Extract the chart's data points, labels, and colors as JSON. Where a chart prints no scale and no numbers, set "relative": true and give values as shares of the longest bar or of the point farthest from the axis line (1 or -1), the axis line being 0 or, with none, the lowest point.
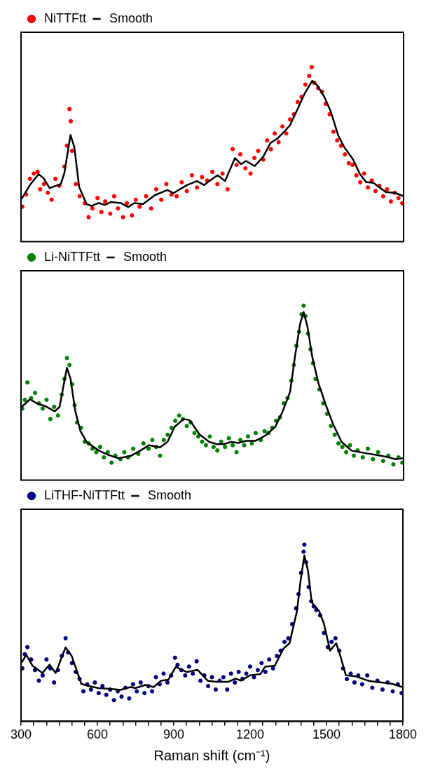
{
  "chart_data": [
    {
      "type": "scatter",
      "relative": true,
      "legend": "top left",
      "tick_labels": false,
      "xlim": [
        300,
        1800
      ],
      "series": [
        {
          "name": "NiTTFtt",
          "type": "scatter",
          "marker": "circle",
          "color": "#ff0000",
          "x": [
            305,
            320,
            335,
            350,
            365,
            375,
            390,
            405,
            420,
            435,
            450,
            470,
            480,
            490,
            495,
            500,
            515,
            530,
            550,
            565,
            580,
            600,
            615,
            630,
            650,
            665,
            680,
            700,
            715,
            735,
            750,
            765,
            790,
            810,
            830,
            850,
            870,
            890,
            910,
            930,
            950,
            970,
            990,
            1010,
            1030,
            1050,
            1070,
            1090,
            1110,
            1130,
            1145,
            1160,
            1180,
            1200,
            1215,
            1230,
            1250,
            1265,
            1280,
            1295,
            1310,
            1325,
            1340,
            1355,
            1370,
            1385,
            1400,
            1415,
            1430,
            1440,
            1450,
            1465,
            1480,
            1495,
            1510,
            1525,
            1540,
            1555,
            1570,
            1585,
            1600,
            1615,
            1630,
            1645,
            1660,
            1675,
            1690,
            1705,
            1720,
            1735,
            1750,
            1765,
            1780,
            1795
          ],
          "values": [
            0.2,
            0.27,
            0.36,
            0.39,
            0.4,
            0.3,
            0.33,
            0.28,
            0.24,
            0.36,
            0.32,
            0.43,
            0.55,
            0.76,
            0.69,
            0.52,
            0.33,
            0.26,
            0.22,
            0.14,
            0.19,
            0.25,
            0.17,
            0.23,
            0.16,
            0.26,
            0.19,
            0.14,
            0.22,
            0.15,
            0.24,
            0.2,
            0.26,
            0.19,
            0.3,
            0.24,
            0.33,
            0.27,
            0.26,
            0.34,
            0.29,
            0.38,
            0.31,
            0.37,
            0.35,
            0.4,
            0.33,
            0.39,
            0.3,
            0.53,
            0.44,
            0.5,
            0.42,
            0.39,
            0.48,
            0.52,
            0.47,
            0.58,
            0.53,
            0.62,
            0.57,
            0.66,
            0.62,
            0.7,
            0.73,
            0.8,
            0.83,
            0.9,
            0.95,
            1.0,
            0.91,
            0.88,
            0.86,
            0.79,
            0.73,
            0.63,
            0.58,
            0.55,
            0.5,
            0.45,
            0.44,
            0.38,
            0.34,
            0.39,
            0.31,
            0.35,
            0.29,
            0.32,
            0.26,
            0.3,
            0.23,
            0.28,
            0.25,
            0.22
          ]
        },
        {
          "name": "Smooth",
          "type": "line",
          "color": "#000000",
          "x": [
            302,
            335,
            369,
            388,
            412,
            456,
            470,
            494,
            509,
            528,
            557,
            576,
            605,
            629,
            653,
            691,
            720,
            744,
            778,
            826,
            874,
            898,
            951,
            990,
            1018,
            1038,
            1071,
            1100,
            1139,
            1163,
            1182,
            1216,
            1249,
            1278,
            1307,
            1331,
            1355,
            1384,
            1413,
            1442,
            1461,
            1490,
            1514,
            1543,
            1567,
            1601,
            1629,
            1653,
            1682,
            1730,
            1769,
            1798
          ],
          "values": [
            0.244,
            0.324,
            0.387,
            0.364,
            0.307,
            0.33,
            0.393,
            0.611,
            0.542,
            0.313,
            0.215,
            0.204,
            0.221,
            0.21,
            0.227,
            0.221,
            0.198,
            0.221,
            0.215,
            0.267,
            0.296,
            0.278,
            0.324,
            0.347,
            0.324,
            0.347,
            0.381,
            0.347,
            0.479,
            0.444,
            0.462,
            0.433,
            0.485,
            0.565,
            0.593,
            0.628,
            0.668,
            0.759,
            0.851,
            0.922,
            0.897,
            0.828,
            0.748,
            0.611,
            0.542,
            0.473,
            0.387,
            0.341,
            0.336,
            0.284,
            0.278,
            0.261
          ]
        }
      ]
    },
    {
      "type": "scatter",
      "relative": true,
      "legend": "top left",
      "tick_labels": false,
      "xlim": [
        300,
        1800
      ],
      "series": [
        {
          "name": "Li-NiTTFtt",
          "type": "scatter",
          "marker": "circle",
          "color": "#008000",
          "x": [
            305,
            315,
            325,
            340,
            355,
            370,
            385,
            400,
            415,
            430,
            445,
            460,
            470,
            480,
            490,
            500,
            510,
            520,
            535,
            550,
            565,
            580,
            595,
            610,
            625,
            640,
            655,
            670,
            690,
            705,
            720,
            740,
            760,
            780,
            800,
            815,
            830,
            845,
            860,
            875,
            890,
            905,
            920,
            935,
            950,
            965,
            980,
            995,
            1010,
            1025,
            1040,
            1055,
            1070,
            1085,
            1100,
            1115,
            1130,
            1145,
            1160,
            1175,
            1190,
            1205,
            1220,
            1240,
            1255,
            1270,
            1285,
            1300,
            1315,
            1330,
            1345,
            1360,
            1370,
            1380,
            1390,
            1400,
            1408,
            1415,
            1425,
            1435,
            1445,
            1455,
            1470,
            1485,
            1500,
            1515,
            1530,
            1545,
            1560,
            1575,
            1590,
            1605,
            1620,
            1640,
            1660,
            1680,
            1700,
            1720,
            1740,
            1760,
            1780,
            1795
          ],
          "values": [
            0.41,
            0.46,
            0.56,
            0.47,
            0.5,
            0.44,
            0.41,
            0.46,
            0.35,
            0.42,
            0.37,
            0.49,
            0.58,
            0.7,
            0.66,
            0.55,
            0.43,
            0.33,
            0.3,
            0.22,
            0.21,
            0.18,
            0.16,
            0.19,
            0.13,
            0.16,
            0.1,
            0.14,
            0.12,
            0.16,
            0.13,
            0.18,
            0.15,
            0.21,
            0.18,
            0.23,
            0.19,
            0.14,
            0.23,
            0.26,
            0.3,
            0.34,
            0.37,
            0.35,
            0.31,
            0.33,
            0.27,
            0.25,
            0.22,
            0.2,
            0.25,
            0.19,
            0.17,
            0.22,
            0.19,
            0.24,
            0.2,
            0.16,
            0.23,
            0.2,
            0.25,
            0.21,
            0.27,
            0.23,
            0.28,
            0.27,
            0.3,
            0.34,
            0.36,
            0.44,
            0.47,
            0.57,
            0.66,
            0.77,
            0.85,
            0.95,
            1.0,
            0.94,
            0.84,
            0.75,
            0.67,
            0.58,
            0.52,
            0.44,
            0.38,
            0.31,
            0.26,
            0.21,
            0.19,
            0.16,
            0.2,
            0.14,
            0.17,
            0.13,
            0.18,
            0.12,
            0.16,
            0.11,
            0.14,
            0.09,
            0.13,
            0.1
          ]
        },
        {
          "name": "Smooth",
          "type": "line",
          "color": "#000000",
          "x": [
            302,
            335,
            364,
            393,
            432,
            451,
            480,
            494,
            513,
            533,
            557,
            605,
            643,
            682,
            730,
            768,
            802,
            845,
            874,
            903,
            937,
            961,
            999,
            1038,
            1067,
            1095,
            1124,
            1153,
            1182,
            1220,
            1259,
            1297,
            1326,
            1355,
            1374,
            1394,
            1408,
            1423,
            1442,
            1466,
            1495,
            1524,
            1557,
            1596,
            1644,
            1692,
            1740,
            1769,
            1798
          ],
          "values": [
            0.419,
            0.463,
            0.438,
            0.425,
            0.394,
            0.419,
            0.644,
            0.581,
            0.394,
            0.281,
            0.219,
            0.169,
            0.144,
            0.125,
            0.138,
            0.169,
            0.2,
            0.188,
            0.219,
            0.306,
            0.35,
            0.344,
            0.263,
            0.219,
            0.206,
            0.206,
            0.219,
            0.213,
            0.225,
            0.225,
            0.256,
            0.306,
            0.394,
            0.506,
            0.706,
            0.894,
            0.963,
            0.881,
            0.706,
            0.556,
            0.431,
            0.319,
            0.219,
            0.169,
            0.156,
            0.144,
            0.131,
            0.119,
            0.125
          ]
        }
      ]
    },
    {
      "type": "scatter",
      "relative": true,
      "legend": "top left",
      "tick_labels": "x",
      "xlim": [
        300,
        1800
      ],
      "xlabel": "Raman shift (cm⁻¹)",
      "xticks": [
        300,
        {
          "value": 350,
          "label": null
        },
        {
          "value": 400,
          "label": null
        },
        {
          "value": 450,
          "label": null
        },
        {
          "value": 500,
          "label": null
        },
        {
          "value": 550,
          "label": null
        },
        600,
        {
          "value": 650,
          "label": null
        },
        {
          "value": 700,
          "label": null
        },
        {
          "value": 750,
          "label": null
        },
        {
          "value": 800,
          "label": null
        },
        {
          "value": 850,
          "label": null
        },
        900,
        {
          "value": 950,
          "label": null
        },
        {
          "value": 1000,
          "label": null
        },
        {
          "value": 1050,
          "label": null
        },
        {
          "value": 1100,
          "label": null
        },
        {
          "value": 1150,
          "label": null
        },
        1200,
        {
          "value": 1250,
          "label": null
        },
        {
          "value": 1300,
          "label": null
        },
        {
          "value": 1350,
          "label": null
        },
        {
          "value": 1400,
          "label": null
        },
        {
          "value": 1450,
          "label": null
        },
        1500,
        {
          "value": 1550,
          "label": null
        },
        {
          "value": 1600,
          "label": null
        },
        {
          "value": 1650,
          "label": null
        },
        {
          "value": 1700,
          "label": null
        },
        {
          "value": 1750,
          "label": null
        },
        1800
      ],
      "series": [
        {
          "name": "LiTHF-NiTTFtt",
          "type": "scatter",
          "marker": "circle",
          "color": "#000080",
          "x": [
            305,
            315,
            325,
            340,
            355,
            370,
            385,
            400,
            415,
            430,
            445,
            460,
            475,
            485,
            500,
            515,
            530,
            545,
            560,
            575,
            590,
            605,
            620,
            635,
            650,
            665,
            680,
            695,
            710,
            725,
            740,
            755,
            770,
            785,
            800,
            815,
            830,
            845,
            860,
            875,
            890,
            905,
            915,
            930,
            945,
            960,
            975,
            990,
            1005,
            1020,
            1035,
            1050,
            1065,
            1080,
            1095,
            1110,
            1125,
            1140,
            1155,
            1170,
            1185,
            1200,
            1215,
            1230,
            1245,
            1260,
            1275,
            1290,
            1305,
            1320,
            1335,
            1350,
            1365,
            1380,
            1390,
            1400,
            1410,
            1413,
            1420,
            1430,
            1440,
            1450,
            1460,
            1475,
            1490,
            1505,
            1520,
            1535,
            1550,
            1565,
            1580,
            1595,
            1610,
            1625,
            1640,
            1660,
            1680,
            1700,
            1720,
            1740,
            1760,
            1780,
            1795
          ],
          "values": [
            0.3,
            0.38,
            0.42,
            0.35,
            0.29,
            0.23,
            0.26,
            0.35,
            0.3,
            0.22,
            0.29,
            0.37,
            0.47,
            0.39,
            0.33,
            0.28,
            0.24,
            0.17,
            0.21,
            0.18,
            0.22,
            0.16,
            0.2,
            0.15,
            0.18,
            0.12,
            0.17,
            0.14,
            0.19,
            0.13,
            0.21,
            0.17,
            0.22,
            0.16,
            0.2,
            0.17,
            0.25,
            0.21,
            0.27,
            0.22,
            0.26,
            0.36,
            0.32,
            0.29,
            0.26,
            0.31,
            0.27,
            0.34,
            0.23,
            0.26,
            0.2,
            0.25,
            0.18,
            0.23,
            0.25,
            0.18,
            0.27,
            0.22,
            0.28,
            0.24,
            0.27,
            0.31,
            0.25,
            0.29,
            0.33,
            0.28,
            0.35,
            0.3,
            0.37,
            0.4,
            0.45,
            0.47,
            0.55,
            0.64,
            0.72,
            0.84,
            0.96,
            1.0,
            0.9,
            0.76,
            0.68,
            0.65,
            0.63,
            0.6,
            0.5,
            0.42,
            0.45,
            0.47,
            0.4,
            0.3,
            0.24,
            0.27,
            0.22,
            0.26,
            0.21,
            0.26,
            0.19,
            0.23,
            0.18,
            0.22,
            0.17,
            0.21,
            0.16
          ]
        },
        {
          "name": "Smooth",
          "type": "line",
          "color": "#000000",
          "x": [
            302,
            321,
            345,
            384,
            412,
            436,
            475,
            499,
            537,
            566,
            605,
            663,
            691,
            730,
            749,
            788,
            821,
            850,
            879,
            908,
            951,
            994,
            1033,
            1067,
            1115,
            1143,
            1163,
            1201,
            1240,
            1259,
            1297,
            1331,
            1355,
            1384,
            1398,
            1413,
            1427,
            1442,
            1471,
            1490,
            1514,
            1538,
            1552,
            1576,
            1615,
            1663,
            1692,
            1730,
            1759,
            1798
          ],
          "values": [
            0.333,
            0.376,
            0.315,
            0.273,
            0.321,
            0.273,
            0.418,
            0.37,
            0.212,
            0.2,
            0.188,
            0.182,
            0.178,
            0.194,
            0.188,
            0.206,
            0.194,
            0.23,
            0.236,
            0.309,
            0.279,
            0.291,
            0.23,
            0.224,
            0.224,
            0.242,
            0.23,
            0.261,
            0.267,
            0.309,
            0.315,
            0.412,
            0.442,
            0.624,
            0.794,
            0.939,
            0.855,
            0.673,
            0.624,
            0.552,
            0.4,
            0.442,
            0.382,
            0.261,
            0.255,
            0.23,
            0.224,
            0.218,
            0.212,
            0.194
          ]
        }
      ]
    }
  ]
}
